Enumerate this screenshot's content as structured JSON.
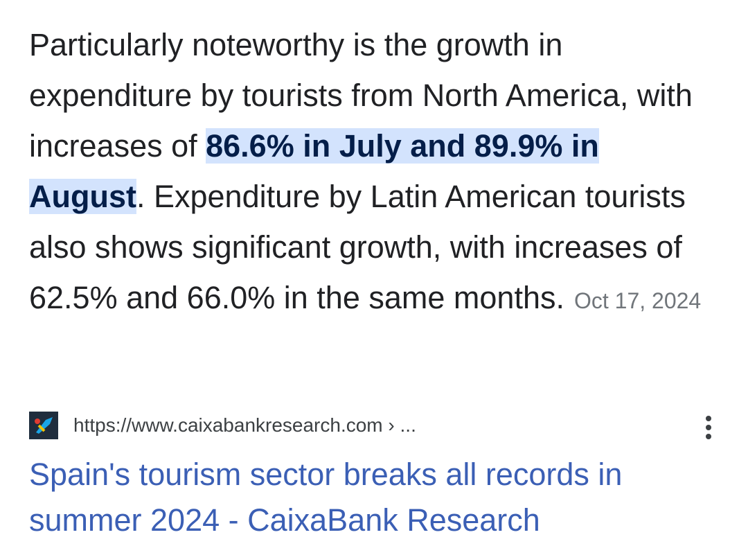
{
  "snippet": {
    "text_before": "Particularly noteworthy is the growth in expenditure by tourists from North America, with increases of ",
    "highlight": "86.6% in July and 89.9% in August",
    "text_after": ". Expenditure by Latin American tourists also shows significant growth, with increases of 62.5% and 66.0% in the same months.",
    "date": "Oct 17, 2024"
  },
  "source": {
    "url": "https://www.caixabankresearch.com › ...",
    "title": "Spain's tourism sector breaks all records in summer 2024 - CaixaBank Research"
  }
}
